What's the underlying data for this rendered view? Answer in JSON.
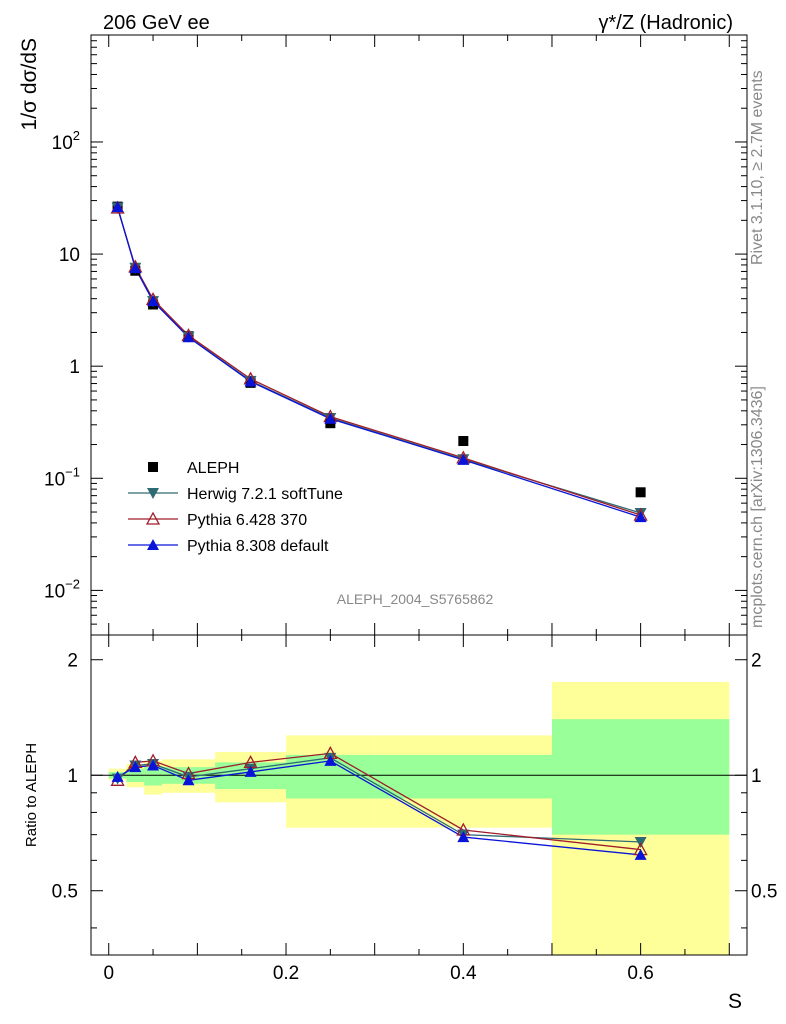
{
  "header": {
    "left": "206 GeV ee",
    "right": "γ*/Z (Hadronic)"
  },
  "side_labels": {
    "rivet": "Rivet 3.1.10, ≥ 2.7M events",
    "mcplots": "mcplots.cern.ch [arXiv:1306.3436]"
  },
  "analysis_id": "ALEPH_2004_S5765862",
  "colors": {
    "data": "#000000",
    "herwig": "#2d6b73",
    "pythia6": "#a01d2a",
    "pythia8": "#0a14d8",
    "band_outer": "#ffff99",
    "band_inner": "#99ff99"
  },
  "chart_data": [
    {
      "type": "scatter",
      "panel": "main",
      "ylabel": "1/σ  dσ/dS",
      "xlim": [
        -0.02,
        0.72
      ],
      "ylim": [
        0.004,
        900
      ],
      "yscale": "log",
      "y_ticks": [
        {
          "value": 0.01,
          "base": "10",
          "exp": "−2"
        },
        {
          "value": 0.1,
          "base": "10",
          "exp": "−1"
        },
        {
          "value": 1,
          "base": "1",
          "exp": ""
        },
        {
          "value": 10,
          "base": "10",
          "exp": ""
        },
        {
          "value": 100,
          "base": "10",
          "exp": "2"
        }
      ],
      "legend_position": "bottom-left",
      "x": [
        0.01,
        0.03,
        0.05,
        0.09,
        0.16,
        0.25,
        0.4,
        0.6
      ],
      "series": [
        {
          "name": "ALEPH",
          "key": "data",
          "marker": "square",
          "values": [
            26.5,
            7.1,
            3.55,
            1.85,
            0.71,
            0.31,
            0.215,
            0.075
          ]
        },
        {
          "name": "Herwig 7.2.1 softTune",
          "key": "herwig",
          "marker": "triangle-down",
          "values": [
            26.0,
            7.55,
            3.8,
            1.83,
            0.74,
            0.345,
            0.148,
            0.049
          ]
        },
        {
          "name": "Pythia 6.428 370",
          "key": "pythia6",
          "marker": "triangle-up-open",
          "values": [
            25.8,
            7.7,
            3.95,
            1.88,
            0.77,
            0.355,
            0.152,
            0.047
          ]
        },
        {
          "name": "Pythia 8.308 default",
          "key": "pythia8",
          "marker": "triangle-up",
          "values": [
            26.2,
            7.5,
            3.8,
            1.81,
            0.73,
            0.34,
            0.146,
            0.045
          ]
        }
      ]
    },
    {
      "type": "line",
      "panel": "ratio",
      "xlabel": "S",
      "ylabel": "Ratio to ALEPH",
      "xlim": [
        -0.02,
        0.72
      ],
      "ylim": [
        0.34,
        2.32
      ],
      "x_ticks": [
        "0",
        "0.2",
        "0.4",
        "0.6"
      ],
      "x_tick_values": [
        0,
        0.2,
        0.4,
        0.6
      ],
      "y_ticks": [
        "0.5",
        "1",
        "2"
      ],
      "y_tick_values": [
        0.5,
        1,
        2
      ],
      "bins": [
        {
          "lo": 0.0,
          "hi": 0.02,
          "outer": [
            0.97,
            1.04
          ],
          "inner": [
            0.98,
            1.02
          ]
        },
        {
          "lo": 0.02,
          "hi": 0.04,
          "outer": [
            0.93,
            1.07
          ],
          "inner": [
            0.96,
            1.04
          ]
        },
        {
          "lo": 0.04,
          "hi": 0.06,
          "outer": [
            0.89,
            1.09
          ],
          "inner": [
            0.94,
            1.05
          ]
        },
        {
          "lo": 0.06,
          "hi": 0.12,
          "outer": [
            0.9,
            1.1
          ],
          "inner": [
            0.95,
            1.05
          ]
        },
        {
          "lo": 0.12,
          "hi": 0.2,
          "outer": [
            0.85,
            1.15
          ],
          "inner": [
            0.92,
            1.08
          ]
        },
        {
          "lo": 0.2,
          "hi": 0.3,
          "outer": [
            0.73,
            1.27
          ],
          "inner": [
            0.87,
            1.13
          ]
        },
        {
          "lo": 0.3,
          "hi": 0.5,
          "outer": [
            0.73,
            1.27
          ],
          "inner": [
            0.87,
            1.13
          ]
        },
        {
          "lo": 0.5,
          "hi": 0.7,
          "outer": [
            0.34,
            1.75
          ],
          "inner": [
            0.7,
            1.4
          ]
        }
      ],
      "x": [
        0.01,
        0.03,
        0.05,
        0.09,
        0.16,
        0.25,
        0.4,
        0.6
      ],
      "series": [
        {
          "name": "Herwig 7.2.1 softTune",
          "key": "herwig",
          "marker": "triangle-down",
          "values": [
            0.98,
            1.06,
            1.07,
            0.99,
            1.04,
            1.11,
            0.7,
            0.67
          ]
        },
        {
          "name": "Pythia 6.428 370",
          "key": "pythia6",
          "marker": "triangle-up-open",
          "values": [
            0.97,
            1.08,
            1.09,
            1.01,
            1.08,
            1.14,
            0.72,
            0.64
          ]
        },
        {
          "name": "Pythia 8.308 default",
          "key": "pythia8",
          "marker": "triangle-up",
          "values": [
            0.99,
            1.05,
            1.06,
            0.97,
            1.02,
            1.09,
            0.69,
            0.62
          ]
        }
      ]
    }
  ]
}
